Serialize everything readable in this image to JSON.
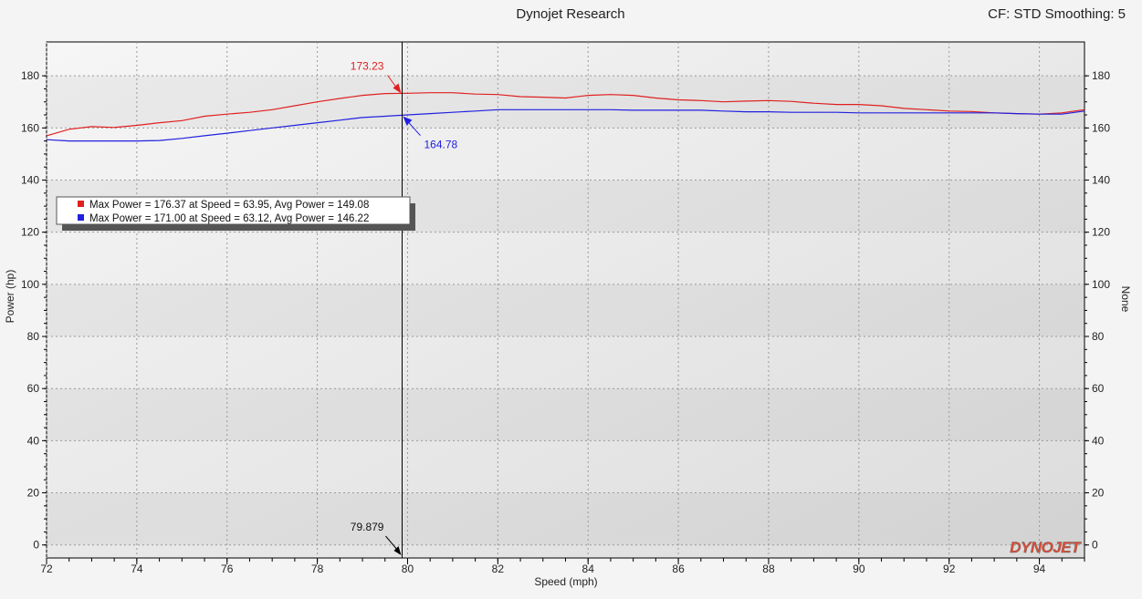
{
  "header": {
    "title": "Dynojet Research",
    "cf_label": "CF: STD Smoothing: 5"
  },
  "logo_text": "DYNOJET",
  "chart_data": {
    "type": "line",
    "xlabel": "Speed (mph)",
    "ylabel": "Power (hp)",
    "y2label": "None",
    "xlim": [
      72,
      95
    ],
    "ylim": [
      -5,
      193
    ],
    "y2lim": [
      -5,
      193
    ],
    "xticks": [
      72,
      74,
      76,
      78,
      80,
      82,
      84,
      86,
      88,
      90,
      92,
      94
    ],
    "yticks": [
      0,
      20,
      40,
      60,
      80,
      100,
      120,
      140,
      160,
      180
    ],
    "grid": true,
    "legend": {
      "placement": "upper-left",
      "entries": [
        {
          "color": "#e02020",
          "text": "Max Power = 176.37 at Speed = 63.95,  Avg Power = 149.08"
        },
        {
          "color": "#2020e0",
          "text": "Max Power = 171.00 at Speed = 63.12,  Avg Power = 146.22"
        }
      ]
    },
    "cursor": {
      "x": 79.879,
      "x_label": "79.879",
      "annotations": [
        {
          "y": 173.23,
          "label": "173.23",
          "color": "#e02020"
        },
        {
          "y": 164.78,
          "label": "164.78",
          "color": "#2020e0"
        }
      ]
    },
    "series": [
      {
        "color": "#e02020",
        "x": [
          72.0,
          72.5,
          73.0,
          73.5,
          74.0,
          74.5,
          75.0,
          75.5,
          76.0,
          76.5,
          77.0,
          77.5,
          78.0,
          78.5,
          79.0,
          79.5,
          80.0,
          80.5,
          81.0,
          81.5,
          82.0,
          82.5,
          83.0,
          83.5,
          84.0,
          84.5,
          85.0,
          85.5,
          86.0,
          86.5,
          87.0,
          87.5,
          88.0,
          88.5,
          89.0,
          89.5,
          90.0,
          90.5,
          91.0,
          91.5,
          92.0,
          92.5,
          93.0,
          93.5,
          94.0,
          94.5,
          95.0
        ],
        "y": [
          157.0,
          159.5,
          160.5,
          160.2,
          161.0,
          162.0,
          162.8,
          164.5,
          165.3,
          166.0,
          167.0,
          168.5,
          170.0,
          171.3,
          172.5,
          173.2,
          173.3,
          173.5,
          173.5,
          173.0,
          172.8,
          172.0,
          171.8,
          171.5,
          172.5,
          172.8,
          172.5,
          171.5,
          170.8,
          170.5,
          170.0,
          170.3,
          170.5,
          170.2,
          169.5,
          169.0,
          169.0,
          168.5,
          167.5,
          167.0,
          166.5,
          166.3,
          165.8,
          165.5,
          165.3,
          165.8,
          167.0
        ]
      },
      {
        "color": "#2020e0",
        "x": [
          72.0,
          72.5,
          73.0,
          73.5,
          74.0,
          74.5,
          75.0,
          75.5,
          76.0,
          76.5,
          77.0,
          77.5,
          78.0,
          78.5,
          79.0,
          79.5,
          80.0,
          80.5,
          81.0,
          81.5,
          82.0,
          82.5,
          83.0,
          83.5,
          84.0,
          84.5,
          85.0,
          85.5,
          86.0,
          86.5,
          87.0,
          87.5,
          88.0,
          88.5,
          89.0,
          89.5,
          90.0,
          90.5,
          91.0,
          91.5,
          92.0,
          92.5,
          93.0,
          93.5,
          94.0,
          94.5,
          95.0
        ],
        "y": [
          155.5,
          155.0,
          155.0,
          155.0,
          155.0,
          155.2,
          156.0,
          157.0,
          158.0,
          159.0,
          160.0,
          161.0,
          162.0,
          163.0,
          164.0,
          164.5,
          165.0,
          165.5,
          166.0,
          166.5,
          167.0,
          167.0,
          167.0,
          167.0,
          167.0,
          167.0,
          166.8,
          166.8,
          166.8,
          166.8,
          166.5,
          166.2,
          166.2,
          166.0,
          166.0,
          166.0,
          165.8,
          165.8,
          165.8,
          165.8,
          165.8,
          165.8,
          165.8,
          165.5,
          165.3,
          165.3,
          166.5
        ]
      }
    ]
  }
}
